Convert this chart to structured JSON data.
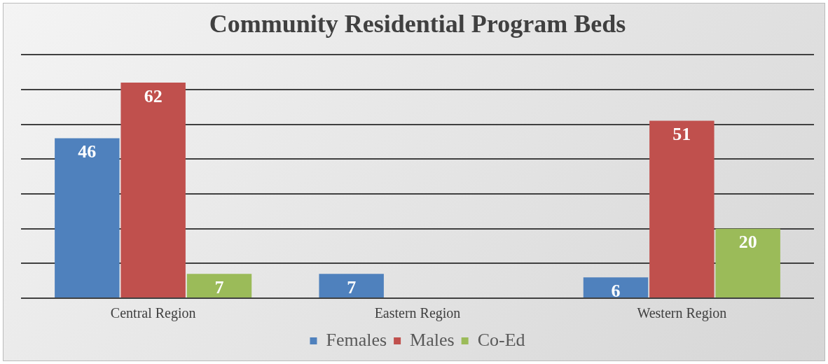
{
  "chart_data": {
    "type": "bar",
    "title": "Community Residential Program Beds",
    "categories": [
      "Central Region",
      "Eastern Region",
      "Western Region"
    ],
    "series": [
      {
        "name": "Females",
        "color": "#4f81bd",
        "values": [
          46,
          7,
          6
        ]
      },
      {
        "name": "Males",
        "color": "#c0504d",
        "values": [
          62,
          null,
          51
        ]
      },
      {
        "name": "Co-Ed",
        "color": "#9bbb59",
        "values": [
          7,
          null,
          20
        ]
      }
    ],
    "ylim": [
      0,
      70
    ],
    "yticks": [
      {
        "value": 0,
        "label": null
      },
      {
        "value": 10,
        "label": null
      },
      {
        "value": 20,
        "label": null
      },
      {
        "value": 30,
        "label": null
      },
      {
        "value": 40,
        "label": null
      },
      {
        "value": 50,
        "label": null
      },
      {
        "value": 60,
        "label": null
      },
      {
        "value": 70,
        "label": null
      }
    ],
    "tick_labels": "x",
    "grid": "y",
    "legend": "bottom",
    "data_labels": true
  }
}
